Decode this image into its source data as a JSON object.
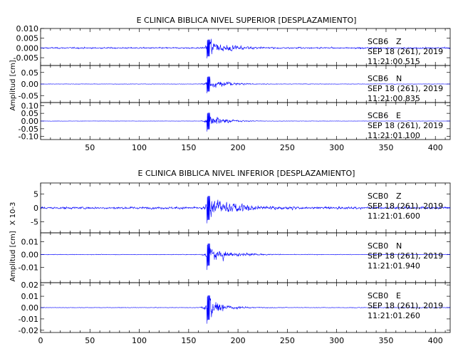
{
  "chart_data": [
    {
      "type": "line",
      "title": "E CLINICA BIBLICA NIVEL SUPERIOR [DESPLAZAMIENTO]",
      "ylabel": "Amplitud [cm]",
      "xlim": [
        0,
        415
      ],
      "xticks": [
        "50",
        "100",
        "150",
        "200",
        "250",
        "300",
        "350",
        "400"
      ],
      "xtick_values": [
        50,
        100,
        150,
        200,
        250,
        300,
        350,
        400
      ],
      "color": "#0000ff",
      "panels": [
        {
          "station": "SCB6",
          "component": "Z",
          "date": "SEP 18 (261), 2019",
          "time": "11:21:00.515",
          "ylim": [
            -0.009,
            0.01
          ],
          "yticks": [
            "0.010",
            "0.005",
            "0.000",
            "-0.005"
          ],
          "ytick_values": [
            0.01,
            0.005,
            0.0,
            -0.005
          ],
          "waveform": {
            "event_onset": 160,
            "peak_time": 170,
            "peak_amplitude": 0.008,
            "noise": 0.0008,
            "decay": 18
          }
        },
        {
          "station": "SCB6",
          "component": "N",
          "date": "SEP 18 (261), 2019",
          "time": "11:21:00.835",
          "ylim": [
            -0.08,
            0.08
          ],
          "yticks": [
            "0.05",
            "0.00",
            "-0.05"
          ],
          "ytick_values": [
            0.05,
            0.0,
            -0.05
          ],
          "waveform": {
            "event_onset": 160,
            "peak_time": 170,
            "peak_amplitude": 0.06,
            "noise": 0.002,
            "decay": 15
          }
        },
        {
          "station": "SCB6",
          "component": "E",
          "date": "SEP 18 (261), 2019",
          "time": "11:21:01.100",
          "ylim": [
            -0.12,
            0.12
          ],
          "yticks": [
            "0.10",
            "0.05",
            "0.00",
            "-0.05",
            "-0.10"
          ],
          "ytick_values": [
            0.1,
            0.05,
            0.0,
            -0.05,
            -0.1
          ],
          "waveform": {
            "event_onset": 160,
            "peak_time": 170,
            "peak_amplitude": 0.1,
            "noise": 0.002,
            "decay": 14
          }
        }
      ]
    },
    {
      "type": "line",
      "title": "E CLINICA BIBLICA NIVEL INFERIOR [DESPLAZAMIENTO]",
      "ylabel": "Amplitud [cm]",
      "scale_label": "X 10-3",
      "xlim": [
        0,
        415
      ],
      "xticks": [
        "0",
        "50",
        "100",
        "150",
        "200",
        "250",
        "300",
        "350",
        "400"
      ],
      "xtick_values": [
        0,
        50,
        100,
        150,
        200,
        250,
        300,
        350,
        400
      ],
      "color": "#0000ff",
      "panels": [
        {
          "station": "SCB0",
          "component": "Z",
          "date": "SEP 18 (261), 2019",
          "time": "11:21:01.600",
          "ylim": [
            -9,
            9
          ],
          "yticks": [
            "5",
            "0",
            "-5"
          ],
          "ytick_values": [
            5,
            0,
            -5
          ],
          "waveform": {
            "event_onset": 160,
            "peak_time": 170,
            "peak_amplitude": 8,
            "noise": 0.9,
            "decay": 25
          }
        },
        {
          "station": "SCB0",
          "component": "N",
          "date": "SEP 18 (261), 2019",
          "time": "11:21:01.940",
          "ylim": [
            -0.022,
            0.017
          ],
          "yticks": [
            "0.01",
            "0.00",
            "-0.01"
          ],
          "ytick_values": [
            0.01,
            0.0,
            -0.01
          ],
          "waveform": {
            "event_onset": 160,
            "peak_time": 170,
            "peak_amplitude": 0.016,
            "noise": 0.0005,
            "decay": 18
          }
        },
        {
          "station": "SCB0",
          "component": "E",
          "date": "SEP 18 (261), 2019",
          "time": "11:21:01.260",
          "ylim": [
            -0.022,
            0.022
          ],
          "yticks": [
            "0.02",
            "0.01",
            "0.00",
            "-0.01",
            "-0.02"
          ],
          "ytick_values": [
            0.02,
            0.01,
            0.0,
            -0.01,
            -0.02
          ],
          "waveform": {
            "event_onset": 160,
            "peak_time": 170,
            "peak_amplitude": 0.02,
            "noise": 0.0005,
            "decay": 14
          }
        }
      ]
    }
  ]
}
